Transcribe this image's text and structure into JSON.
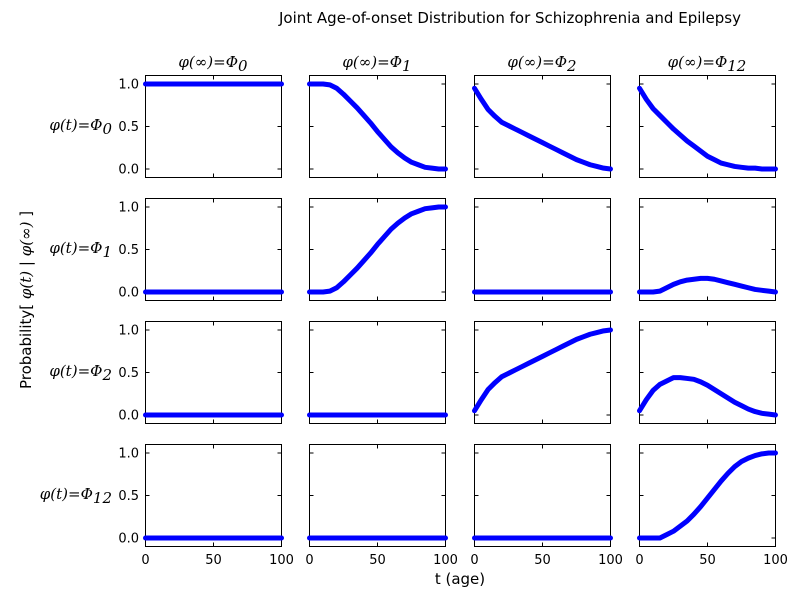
{
  "chart_data": {
    "type": "line",
    "title": "Joint Age-of-onset Distribution for Schizophrenia and Epilepsy",
    "xlabel": "t (age)",
    "ylabel": {
      "prefix": "Probability[ ",
      "phi_t": "φ(t)",
      "sep": " | ",
      "phi_inf": "φ(∞)",
      "suffix": " ]"
    },
    "xlim": [
      0,
      100
    ],
    "ylim": [
      -0.1,
      1.1
    ],
    "xticks": [
      "0",
      "50",
      "100"
    ],
    "yticks": [
      "0.0",
      "0.5",
      "1.0"
    ],
    "line_color": "#0000ff",
    "col_titles": [
      {
        "lhs": "φ(∞)",
        "eq": "=",
        "sym": "Φ",
        "sub": "0"
      },
      {
        "lhs": "φ(∞)",
        "eq": "=",
        "sym": "Φ",
        "sub": "1"
      },
      {
        "lhs": "φ(∞)",
        "eq": "=",
        "sym": "Φ",
        "sub": "2"
      },
      {
        "lhs": "φ(∞)",
        "eq": "=",
        "sym": "Φ",
        "sub": "12"
      }
    ],
    "row_labels": [
      {
        "lhs": "φ(t)",
        "eq": "=",
        "sym": "Φ",
        "sub": "0"
      },
      {
        "lhs": "φ(t)",
        "eq": "=",
        "sym": "Φ",
        "sub": "1"
      },
      {
        "lhs": "φ(t)",
        "eq": "=",
        "sym": "Φ",
        "sub": "2"
      },
      {
        "lhs": "φ(t)",
        "eq": "=",
        "sym": "Φ",
        "sub": "12"
      }
    ],
    "x": [
      0,
      5,
      10,
      15,
      20,
      25,
      30,
      35,
      40,
      45,
      50,
      55,
      60,
      65,
      70,
      75,
      80,
      85,
      90,
      95,
      100
    ],
    "panels": [
      [
        [
          1,
          1,
          1,
          1,
          1,
          1,
          1,
          1,
          1,
          1,
          1,
          1,
          1,
          1,
          1,
          1,
          1,
          1,
          1,
          1,
          1
        ],
        [
          1,
          1,
          1,
          0.99,
          0.95,
          0.88,
          0.8,
          0.72,
          0.63,
          0.54,
          0.44,
          0.35,
          0.26,
          0.19,
          0.13,
          0.08,
          0.05,
          0.02,
          0.01,
          0,
          0
        ],
        [
          0.95,
          0.82,
          0.7,
          0.62,
          0.55,
          0.51,
          0.47,
          0.43,
          0.39,
          0.35,
          0.31,
          0.27,
          0.23,
          0.19,
          0.15,
          0.11,
          0.08,
          0.05,
          0.03,
          0.01,
          0
        ],
        [
          0.95,
          0.82,
          0.71,
          0.63,
          0.55,
          0.47,
          0.4,
          0.33,
          0.27,
          0.21,
          0.15,
          0.11,
          0.07,
          0.05,
          0.03,
          0.02,
          0.01,
          0.01,
          0,
          0,
          0
        ]
      ],
      [
        [
          0,
          0,
          0,
          0,
          0,
          0,
          0,
          0,
          0,
          0,
          0,
          0,
          0,
          0,
          0,
          0,
          0,
          0,
          0,
          0,
          0
        ],
        [
          0,
          0,
          0,
          0.01,
          0.05,
          0.12,
          0.2,
          0.28,
          0.37,
          0.46,
          0.56,
          0.65,
          0.74,
          0.81,
          0.87,
          0.92,
          0.95,
          0.98,
          0.99,
          1,
          1
        ],
        [
          0,
          0,
          0,
          0,
          0,
          0,
          0,
          0,
          0,
          0,
          0,
          0,
          0,
          0,
          0,
          0,
          0,
          0,
          0,
          0,
          0
        ],
        [
          0,
          0,
          0,
          0.01,
          0.05,
          0.09,
          0.12,
          0.14,
          0.15,
          0.16,
          0.16,
          0.15,
          0.13,
          0.11,
          0.09,
          0.07,
          0.05,
          0.03,
          0.02,
          0.01,
          0
        ]
      ],
      [
        [
          0,
          0,
          0,
          0,
          0,
          0,
          0,
          0,
          0,
          0,
          0,
          0,
          0,
          0,
          0,
          0,
          0,
          0,
          0,
          0,
          0
        ],
        [
          0,
          0,
          0,
          0,
          0,
          0,
          0,
          0,
          0,
          0,
          0,
          0,
          0,
          0,
          0,
          0,
          0,
          0,
          0,
          0,
          0
        ],
        [
          0.05,
          0.18,
          0.3,
          0.38,
          0.45,
          0.49,
          0.53,
          0.57,
          0.61,
          0.65,
          0.69,
          0.73,
          0.77,
          0.81,
          0.85,
          0.89,
          0.92,
          0.95,
          0.97,
          0.99,
          1
        ],
        [
          0.05,
          0.18,
          0.29,
          0.36,
          0.4,
          0.44,
          0.44,
          0.43,
          0.42,
          0.39,
          0.35,
          0.3,
          0.25,
          0.2,
          0.15,
          0.11,
          0.07,
          0.04,
          0.02,
          0.01,
          0
        ]
      ],
      [
        [
          0,
          0,
          0,
          0,
          0,
          0,
          0,
          0,
          0,
          0,
          0,
          0,
          0,
          0,
          0,
          0,
          0,
          0,
          0,
          0,
          0
        ],
        [
          0,
          0,
          0,
          0,
          0,
          0,
          0,
          0,
          0,
          0,
          0,
          0,
          0,
          0,
          0,
          0,
          0,
          0,
          0,
          0,
          0
        ],
        [
          0,
          0,
          0,
          0,
          0,
          0,
          0,
          0,
          0,
          0,
          0,
          0,
          0,
          0,
          0,
          0,
          0,
          0,
          0,
          0,
          0
        ],
        [
          0,
          0,
          0,
          0,
          0.04,
          0.08,
          0.14,
          0.2,
          0.28,
          0.37,
          0.47,
          0.57,
          0.67,
          0.76,
          0.84,
          0.9,
          0.94,
          0.97,
          0.99,
          1,
          1
        ]
      ]
    ]
  }
}
